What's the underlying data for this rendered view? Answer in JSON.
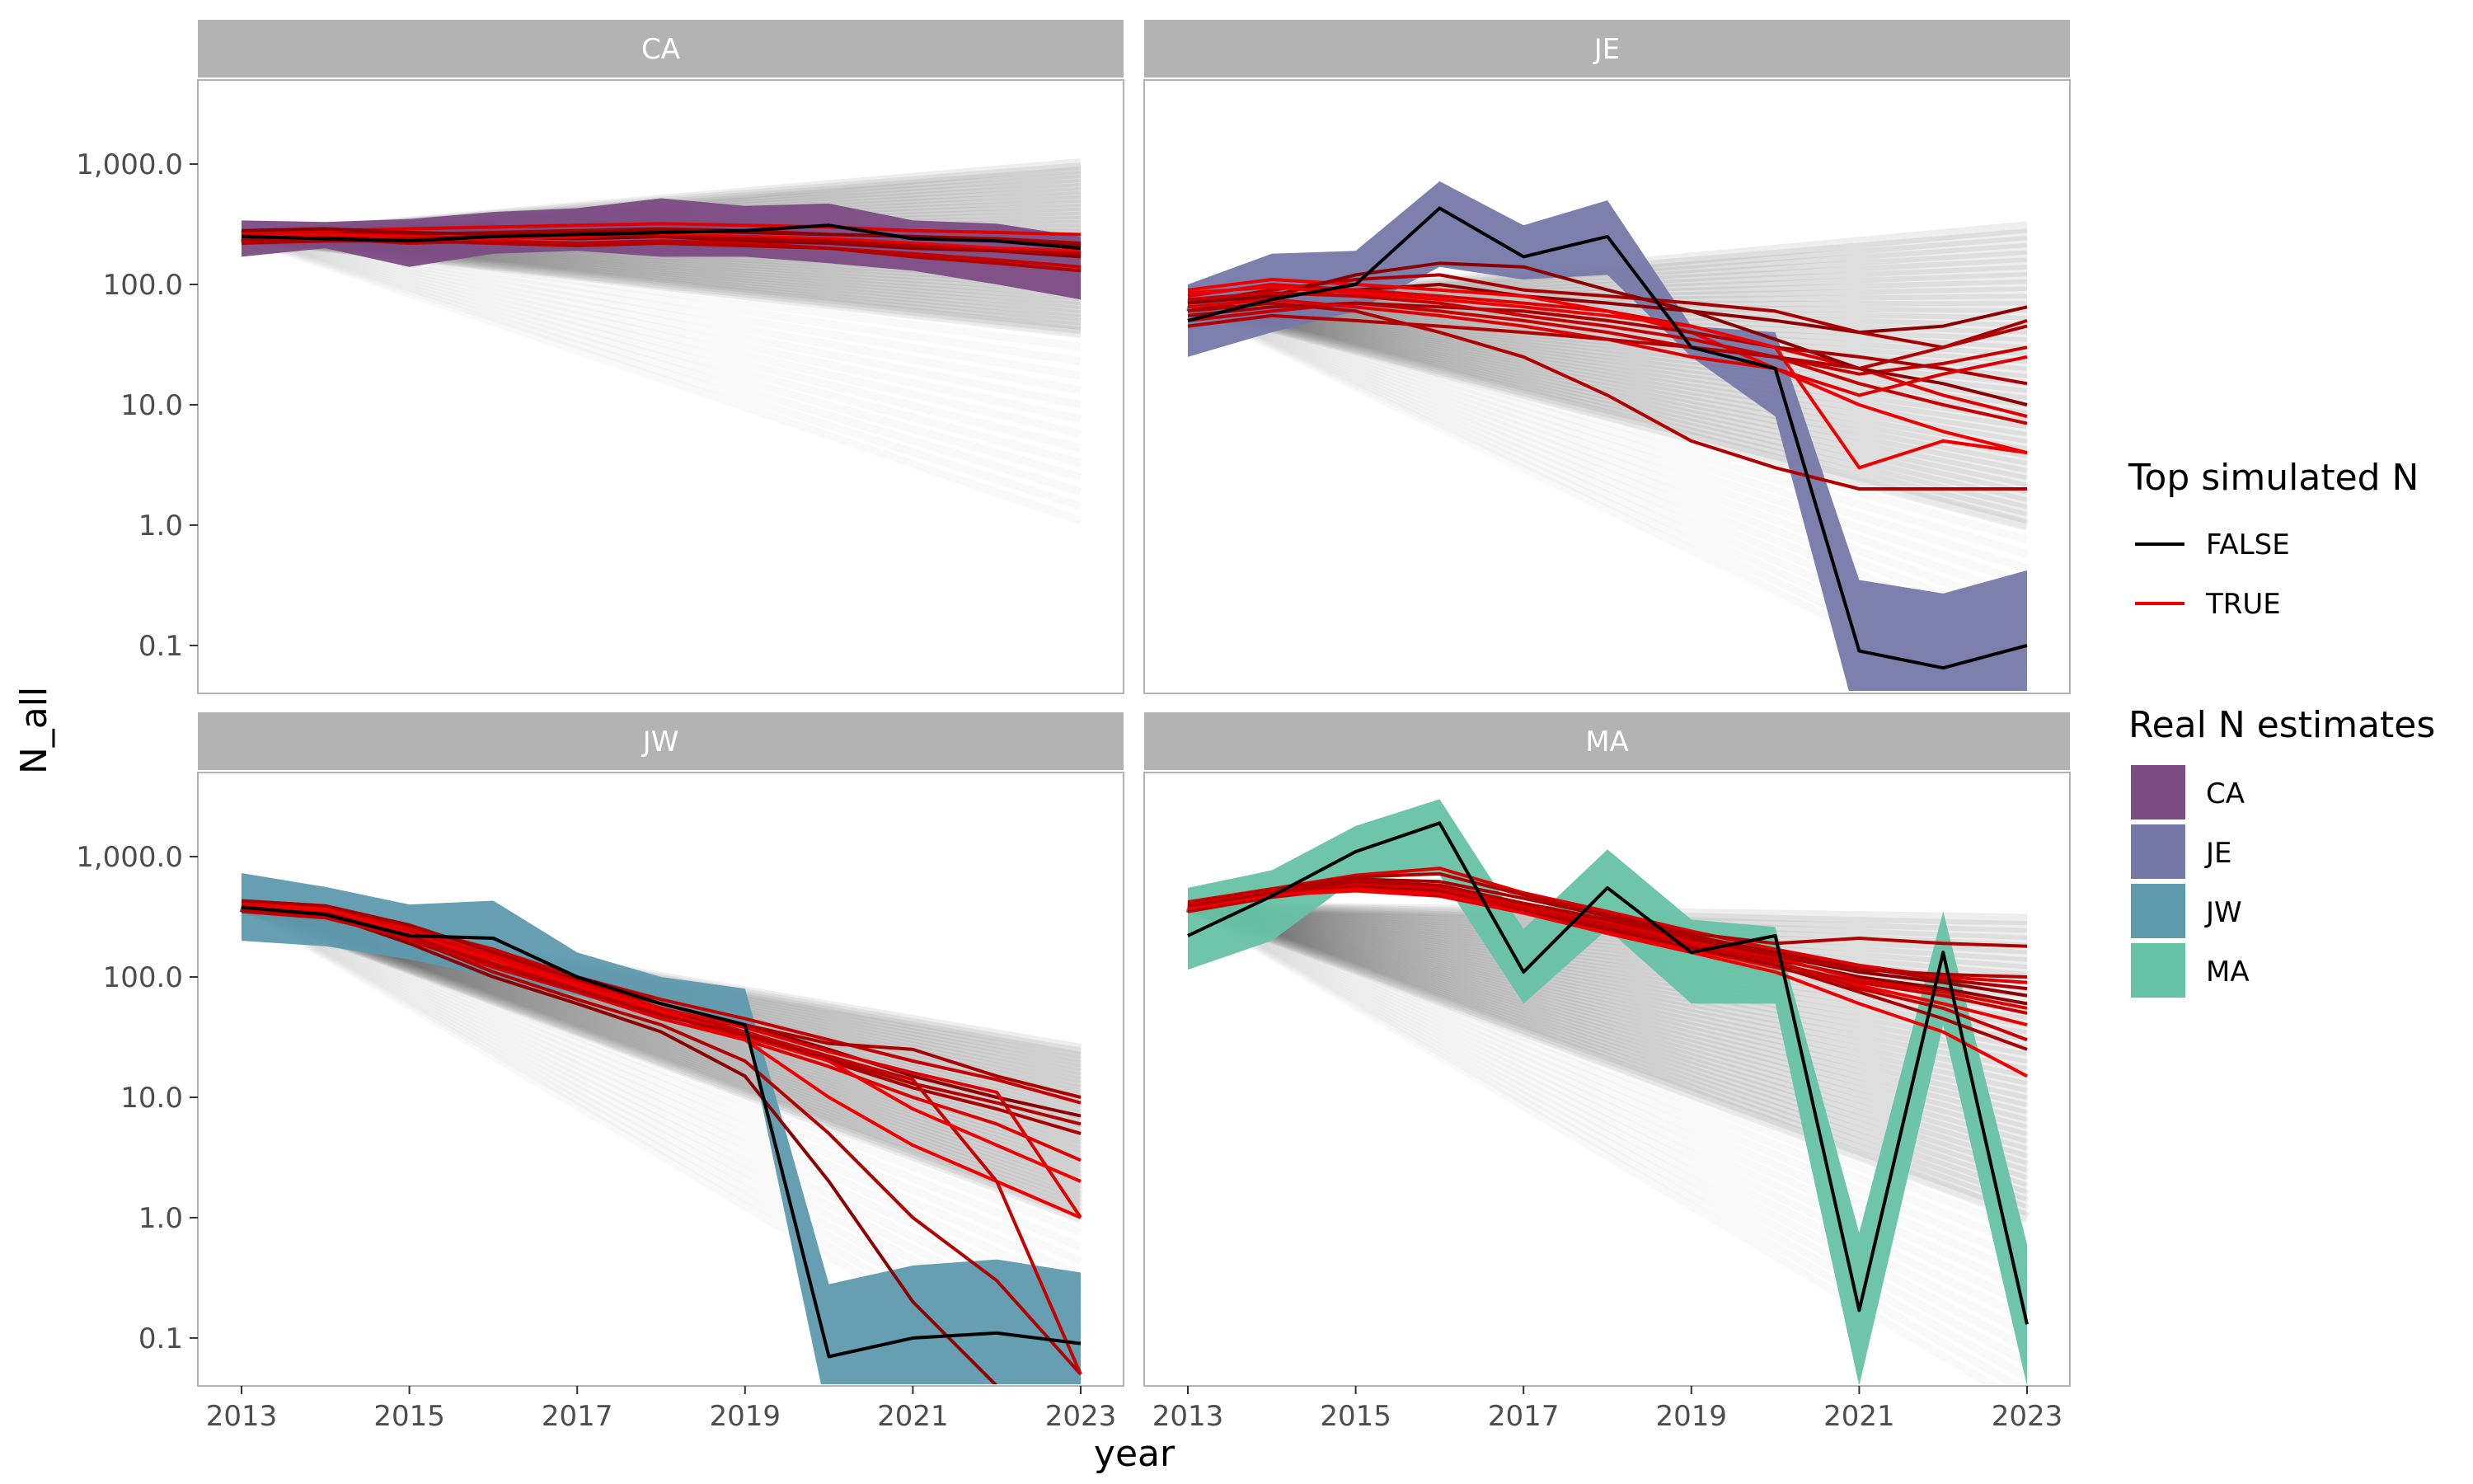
{
  "chart_data": {
    "type": "line",
    "xlabel": "year",
    "ylabel": "N_all",
    "x_scale": "linear",
    "y_scale": "log10",
    "xlim": [
      2013,
      2023
    ],
    "ylim": [
      0.04,
      5000
    ],
    "x_ticks": [
      2013,
      2015,
      2017,
      2019,
      2021,
      2023
    ],
    "x_tick_labels": [
      "2013",
      "2015",
      "2017",
      "2019",
      "2021",
      "2023"
    ],
    "y_ticks": [
      0.1,
      1,
      10,
      100,
      1000
    ],
    "y_tick_labels": [
      "0.1",
      "1.0",
      "10.0",
      "100.0",
      "1,000.0"
    ],
    "grid": false,
    "years": [
      2013,
      2014,
      2015,
      2016,
      2017,
      2018,
      2019,
      2020,
      2021,
      2022,
      2023
    ],
    "facets": [
      {
        "label": "CA",
        "ribbon_color": "#7b4b83",
        "ribbon_lower": [
          170,
          200,
          140,
          180,
          190,
          170,
          170,
          150,
          130,
          100,
          75
        ],
        "ribbon_upper": [
          340,
          330,
          350,
          400,
          430,
          520,
          450,
          470,
          340,
          320,
          250
        ],
        "real_estimate": [
          250,
          240,
          230,
          250,
          260,
          270,
          280,
          310,
          240,
          230,
          200
        ],
        "gray_upper_end": 1000,
        "gray_lower_end": 40,
        "top_simulated": [
          [
            240,
            250,
            230,
            250,
            240,
            250,
            230,
            220,
            200,
            190,
            170
          ],
          [
            260,
            270,
            260,
            270,
            280,
            290,
            280,
            260,
            250,
            240,
            220
          ],
          [
            230,
            240,
            220,
            230,
            220,
            230,
            220,
            200,
            180,
            160,
            140
          ],
          [
            270,
            280,
            290,
            300,
            310,
            320,
            310,
            300,
            280,
            270,
            260
          ],
          [
            250,
            260,
            250,
            240,
            250,
            260,
            250,
            240,
            220,
            200,
            190
          ],
          [
            220,
            230,
            230,
            220,
            210,
            220,
            210,
            200,
            170,
            150,
            130
          ],
          [
            280,
            290,
            270,
            260,
            270,
            280,
            270,
            260,
            250,
            230,
            210
          ],
          [
            240,
            230,
            240,
            250,
            260,
            250,
            240,
            230,
            210,
            190,
            180
          ]
        ]
      },
      {
        "label": "JE",
        "ribbon_color": "#7679a8",
        "ribbon_lower": [
          25,
          40,
          60,
          140,
          110,
          120,
          25,
          8,
          0.001,
          0.001,
          0.001
        ],
        "ribbon_upper": [
          100,
          180,
          190,
          720,
          310,
          500,
          45,
          40,
          0.35,
          0.27,
          0.42
        ],
        "real_estimate": [
          50,
          75,
          100,
          430,
          170,
          250,
          30,
          20,
          0.09,
          0.065,
          0.1
        ],
        "gray_upper_end": 300,
        "gray_lower_end": 1,
        "top_simulated": [
          [
            60,
            80,
            90,
            100,
            80,
            70,
            60,
            50,
            40,
            45,
            65
          ],
          [
            70,
            90,
            110,
            120,
            90,
            80,
            70,
            60,
            40,
            30,
            50
          ],
          [
            50,
            60,
            70,
            60,
            50,
            40,
            30,
            25,
            18,
            22,
            30
          ],
          [
            80,
            100,
            90,
            80,
            70,
            60,
            45,
            30,
            20,
            12,
            8
          ],
          [
            90,
            110,
            100,
            90,
            80,
            60,
            40,
            20,
            10,
            6,
            4
          ],
          [
            60,
            70,
            60,
            40,
            25,
            12,
            5,
            3,
            2,
            2,
            2
          ],
          [
            70,
            80,
            120,
            150,
            140,
            90,
            60,
            35,
            20,
            15,
            10
          ],
          [
            55,
            65,
            70,
            65,
            60,
            50,
            40,
            30,
            25,
            20,
            15
          ],
          [
            75,
            85,
            80,
            70,
            55,
            45,
            35,
            25,
            15,
            10,
            7
          ],
          [
            65,
            75,
            65,
            55,
            45,
            35,
            25,
            20,
            12,
            18,
            25
          ],
          [
            85,
            95,
            85,
            75,
            65,
            55,
            45,
            30,
            3,
            5,
            4
          ],
          [
            45,
            55,
            50,
            45,
            40,
            35,
            30,
            25,
            20,
            30,
            45
          ]
        ]
      },
      {
        "label": "JW",
        "ribbon_color": "#5f9aae",
        "ribbon_lower": [
          200,
          180,
          140,
          100,
          70,
          50,
          40,
          0.02,
          0.02,
          0.02,
          0.02
        ],
        "ribbon_upper": [
          730,
          560,
          400,
          430,
          160,
          100,
          80,
          0.28,
          0.4,
          0.45,
          0.35
        ],
        "real_estimate": [
          380,
          330,
          220,
          210,
          100,
          60,
          40,
          0.07,
          0.1,
          0.11,
          0.09
        ],
        "gray_upper_end": 25,
        "gray_lower_end": 1,
        "top_simulated": [
          [
            400,
            360,
            240,
            150,
            90,
            60,
            40,
            25,
            15,
            10,
            7
          ],
          [
            380,
            340,
            220,
            140,
            85,
            55,
            35,
            20,
            12,
            8,
            5
          ],
          [
            420,
            380,
            260,
            170,
            100,
            65,
            45,
            30,
            20,
            14,
            9
          ],
          [
            360,
            320,
            200,
            120,
            75,
            45,
            30,
            18,
            10,
            6,
            3
          ],
          [
            410,
            370,
            230,
            130,
            80,
            50,
            30,
            10,
            4,
            2,
            1
          ],
          [
            390,
            350,
            210,
            110,
            65,
            40,
            20,
            5,
            1,
            0.3,
            0.05
          ],
          [
            370,
            330,
            190,
            100,
            60,
            35,
            15,
            2,
            0.2,
            0.04,
            0.02
          ],
          [
            430,
            390,
            270,
            160,
            95,
            60,
            40,
            28,
            25,
            15,
            10
          ],
          [
            350,
            310,
            210,
            130,
            80,
            50,
            35,
            22,
            14,
            2,
            0.05
          ],
          [
            400,
            350,
            250,
            150,
            90,
            55,
            38,
            24,
            16,
            11,
            1
          ],
          [
            380,
            360,
            230,
            140,
            85,
            52,
            32,
            20,
            8,
            4,
            2
          ],
          [
            360,
            340,
            220,
            125,
            78,
            48,
            33,
            21,
            13,
            9,
            6
          ]
        ]
      },
      {
        "label": "MA",
        "ribbon_color": "#66c2a5",
        "ribbon_lower": [
          115,
          200,
          650,
          700,
          60,
          250,
          60,
          60,
          0.04,
          40,
          0.04
        ],
        "ribbon_upper": [
          550,
          770,
          1800,
          3000,
          250,
          1150,
          300,
          260,
          0.75,
          350,
          0.6
        ],
        "real_estimate": [
          220,
          470,
          1100,
          1900,
          110,
          550,
          160,
          220,
          0.17,
          160,
          0.13
        ],
        "gray_upper_end": 300,
        "gray_lower_end": 1,
        "top_simulated": [
          [
            380,
            500,
            600,
            550,
            400,
            300,
            200,
            150,
            110,
            90,
            70
          ],
          [
            400,
            520,
            650,
            620,
            450,
            320,
            220,
            160,
            120,
            95,
            80
          ],
          [
            350,
            460,
            550,
            500,
            360,
            260,
            180,
            130,
            90,
            70,
            50
          ],
          [
            420,
            540,
            700,
            800,
            500,
            350,
            240,
            170,
            125,
            100,
            90
          ],
          [
            370,
            480,
            520,
            470,
            340,
            240,
            170,
            120,
            85,
            60,
            40
          ],
          [
            410,
            530,
            680,
            720,
            480,
            330,
            230,
            190,
            210,
            190,
            180
          ],
          [
            390,
            490,
            580,
            530,
            380,
            280,
            190,
            140,
            100,
            80,
            60
          ],
          [
            360,
            470,
            560,
            480,
            350,
            250,
            175,
            125,
            75,
            45,
            25
          ],
          [
            380,
            500,
            590,
            540,
            370,
            270,
            185,
            135,
            80,
            55,
            30
          ],
          [
            400,
            510,
            610,
            560,
            390,
            290,
            195,
            145,
            95,
            75,
            55
          ],
          [
            370,
            480,
            540,
            490,
            340,
            230,
            160,
            110,
            60,
            35,
            15
          ],
          [
            390,
            500,
            620,
            580,
            410,
            300,
            210,
            150,
            115,
            105,
            100
          ]
        ]
      }
    ],
    "legend": {
      "top_simulated": {
        "title": "Top simulated N",
        "entries": [
          {
            "label": "FALSE",
            "color": "#000000"
          },
          {
            "label": "TRUE",
            "color": "#ee0000"
          }
        ]
      },
      "real_estimates": {
        "title": "Real N estimates",
        "entries": [
          {
            "label": "CA",
            "color": "#7b4b83"
          },
          {
            "label": "JE",
            "color": "#7679a8"
          },
          {
            "label": "JW",
            "color": "#5f9aae"
          },
          {
            "label": "MA",
            "color": "#66c2a5"
          }
        ]
      }
    }
  }
}
